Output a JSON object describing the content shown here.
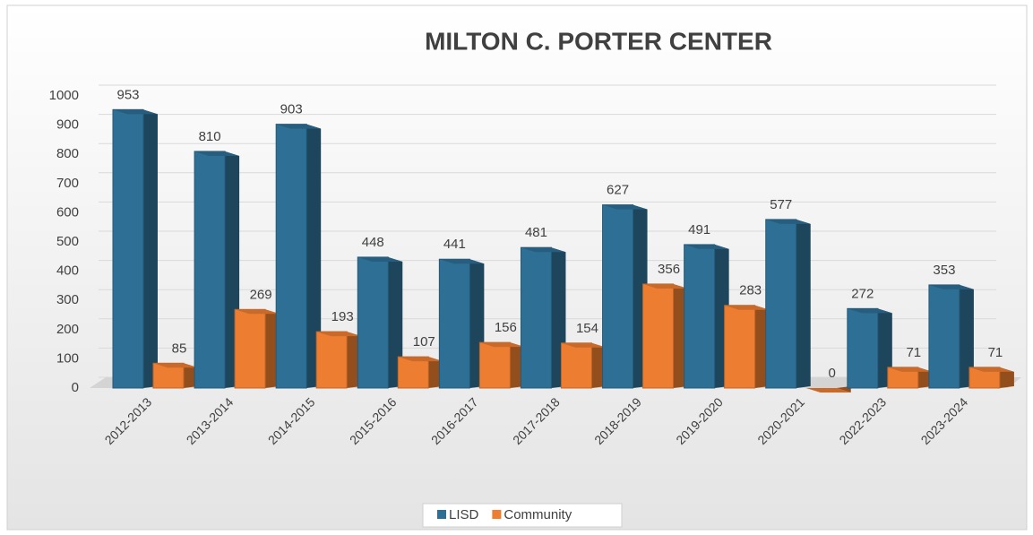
{
  "chart_data": {
    "type": "bar3d",
    "title": "MILTON C. PORTER CENTER",
    "categories": [
      "2012-2013",
      "2013-2014",
      "2014-2015",
      "2015-2016",
      "2016-2017",
      "2017-2018",
      "2018-2019",
      "2019-2020",
      "2020-2021",
      "2022-2023",
      "2023-2024"
    ],
    "series": [
      {
        "name": "LISD",
        "color": "#2e6f95",
        "values": [
          953,
          810,
          903,
          448,
          441,
          481,
          627,
          491,
          577,
          272,
          353
        ]
      },
      {
        "name": "Community",
        "color": "#ed7d31",
        "values": [
          85,
          269,
          193,
          107,
          156,
          154,
          356,
          283,
          0,
          71,
          71
        ]
      }
    ],
    "ylim": [
      0,
      1000
    ],
    "yticks": [
      0,
      100,
      200,
      300,
      400,
      500,
      600,
      700,
      800,
      900,
      1000
    ],
    "grid": true,
    "legend": "bottom"
  }
}
